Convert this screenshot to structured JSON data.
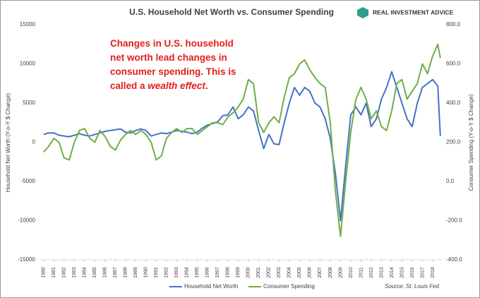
{
  "chart_data": {
    "type": "line",
    "title": "U.S. Household Net Worth vs. Consumer Spending",
    "brand": "REAL INVESTMENT ADVICE",
    "source": "Source: St. Louis Fed",
    "annotation": {
      "lines": [
        "Changes in U.S. household",
        "net worth lead changes in",
        "consumer spending. This is"
      ],
      "last_start": "called a ",
      "last_emphasis": "wealth effect",
      "last_end": "."
    },
    "y_label": "Household Net Worth (Y-o-Y $ Change)",
    "y2_label": "Consumer Spending (Y-o-Y $ Change)",
    "x": [
      1980,
      1980.5,
      1981,
      1981.5,
      1982,
      1982.5,
      1983,
      1983.5,
      1984,
      1984.5,
      1985,
      1985.5,
      1986,
      1986.5,
      1987,
      1987.5,
      1988,
      1988.5,
      1989,
      1989.5,
      1990,
      1990.5,
      1991,
      1991.5,
      1992,
      1992.5,
      1993,
      1993.5,
      1994,
      1994.5,
      1995,
      1995.5,
      1996,
      1996.5,
      1997,
      1997.5,
      1998,
      1998.5,
      1999,
      1999.5,
      2000,
      2000.5,
      2001,
      2001.5,
      2002,
      2002.5,
      2003,
      2003.5,
      2004,
      2004.5,
      2005,
      2005.5,
      2006,
      2006.5,
      2007,
      2007.5,
      2008,
      2008.5,
      2009,
      2009.5,
      2010,
      2010.5,
      2011,
      2011.5,
      2012,
      2012.5,
      2013,
      2013.5,
      2014,
      2014.5,
      2015,
      2015.5,
      2016,
      2016.5,
      2017,
      2017.5,
      2018,
      2018.5,
      2018.75
    ],
    "series": [
      {
        "name": "Household Net Worth",
        "color": "#4472c4",
        "axis": "y",
        "values": [
          1000,
          1200,
          1200,
          900,
          800,
          700,
          900,
          1100,
          900,
          800,
          1000,
          1200,
          1400,
          1500,
          1600,
          1700,
          1300,
          1200,
          1500,
          1700,
          1500,
          800,
          1000,
          1200,
          1100,
          1300,
          1500,
          1400,
          1300,
          1100,
          1300,
          1800,
          2200,
          2400,
          2600,
          3400,
          3500,
          4500,
          3000,
          3500,
          4500,
          4000,
          1500,
          -800,
          1000,
          -200,
          -300,
          2500,
          5000,
          7000,
          6000,
          7000,
          6500,
          5000,
          4500,
          3000,
          500,
          -4000,
          -10000,
          -3000,
          3500,
          4500,
          3500,
          5000,
          2000,
          3000,
          5500,
          7000,
          9000,
          7000,
          5000,
          3000,
          2000,
          5000,
          7000,
          7500,
          8000,
          7200,
          800
        ]
      },
      {
        "name": "Consumer Spending",
        "color": "#70ad47",
        "axis": "y2",
        "values": [
          150,
          180,
          220,
          200,
          120,
          110,
          200,
          260,
          270,
          220,
          200,
          260,
          230,
          180,
          160,
          210,
          240,
          260,
          240,
          260,
          240,
          200,
          110,
          130,
          220,
          250,
          270,
          250,
          270,
          270,
          240,
          260,
          280,
          300,
          300,
          290,
          330,
          350,
          380,
          420,
          520,
          500,
          300,
          250,
          300,
          330,
          300,
          430,
          530,
          550,
          600,
          620,
          570,
          530,
          500,
          480,
          300,
          -50,
          -280,
          0,
          250,
          420,
          480,
          420,
          320,
          360,
          280,
          260,
          360,
          500,
          520,
          420,
          460,
          500,
          600,
          550,
          640,
          700,
          630
        ]
      }
    ],
    "xlim": [
      1979.6,
      2018.9
    ],
    "xticks": [
      1980,
      1981,
      1982,
      1983,
      1984,
      1985,
      1986,
      1987,
      1988,
      1989,
      1990,
      1991,
      1992,
      1993,
      1994,
      1995,
      1996,
      1997,
      1998,
      1999,
      2000,
      2001,
      2002,
      2003,
      2004,
      2005,
      2006,
      2007,
      2008,
      2009,
      2010,
      2011,
      2012,
      2013,
      2014,
      2015,
      2016,
      2017,
      2018
    ],
    "ylim": [
      -15000,
      15000
    ],
    "yticks": [
      -15000,
      -10000,
      -5000,
      0,
      5000,
      10000,
      15000
    ],
    "y2lim": [
      -400,
      800
    ],
    "y2ticks": [
      {
        "value": -400,
        "label": "-400.0"
      },
      {
        "value": -200,
        "label": "-200.0"
      },
      {
        "value": 0,
        "label": "0.0"
      },
      {
        "value": 200,
        "label": "200.0"
      },
      {
        "value": 400,
        "label": "400.0"
      },
      {
        "value": 600,
        "label": "600.0"
      },
      {
        "value": 800,
        "label": "800.0"
      }
    ],
    "grid": false,
    "legend": "bottom"
  }
}
